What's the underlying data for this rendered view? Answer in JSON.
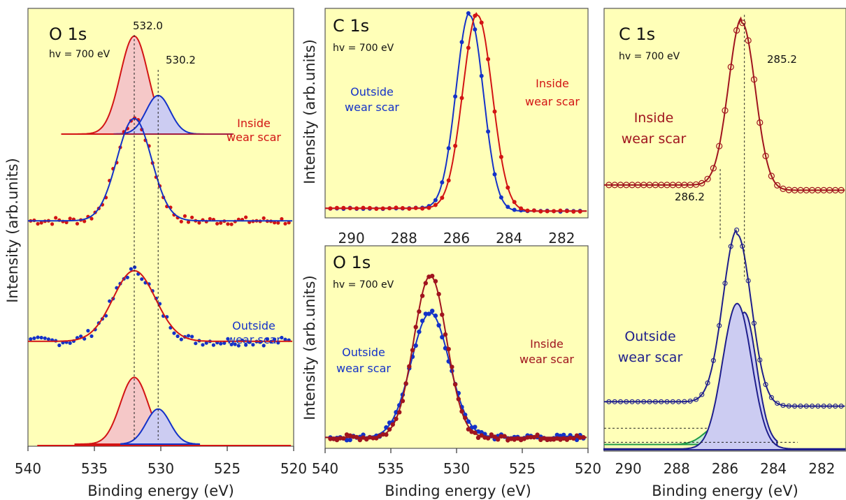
{
  "figure": {
    "shared_ylabel": "Intensity (arb.units)",
    "colors": {
      "background": "#ffffb8",
      "red": "#d21414",
      "darkred": "#a0141e",
      "blue": "#1432c8",
      "navy": "#1e1e8c",
      "green": "#1e9a46",
      "pink": "#f5c8c8",
      "lightblue": "#ccccf2",
      "mint": "#c8ecd2"
    }
  },
  "chart_data": [
    {
      "id": "o1s_left",
      "type": "line",
      "title": "O 1s",
      "subtitle": "hv = 700 eV",
      "xlabel": "Binding energy (eV)",
      "ylabel": "Intensity (arb.units)",
      "xlim": [
        540,
        520
      ],
      "xticks": [
        540,
        535,
        530,
        525,
        520
      ],
      "annotations": [
        "532.0",
        "530.2"
      ],
      "groups": [
        {
          "label": [
            "Inside",
            "wear scar"
          ],
          "label_color": "#d21414",
          "baseline": 0.515,
          "fit_center": 532.0,
          "fit_height": 0.236,
          "fit_width": 1.3,
          "components": [
            {
              "center": 532.0,
              "height": 0.226,
              "width": 1.05,
              "color": "pink"
            },
            {
              "center": 530.2,
              "height": 0.089,
              "width": 0.9,
              "color": "lightblue"
            }
          ],
          "component_base": 0.715
        },
        {
          "label": [
            "Outside",
            "wear scar"
          ],
          "label_color": "#1432c8",
          "baseline": 0.237,
          "fit_center": 532.0,
          "fit_height": 0.163,
          "fit_width": 1.6,
          "components": [
            {
              "center": 532.0,
              "height": 0.154,
              "width": 1.05,
              "color": "pink"
            },
            {
              "center": 530.2,
              "height": 0.081,
              "width": 0.9,
              "color": "lightblue"
            }
          ],
          "component_base": 0.0
        }
      ]
    },
    {
      "id": "c1s_middle",
      "type": "line",
      "title": "C 1s",
      "subtitle": "hv = 700 eV",
      "ylabel": "Intensity (arb.units)",
      "xlim": [
        291,
        281
      ],
      "xticks": [
        290,
        288,
        286,
        284,
        282
      ],
      "series": [
        {
          "label": [
            "Outside",
            "wear scar"
          ],
          "label_color": "#1432c8",
          "center": 285.5,
          "height": 1.0,
          "width": 0.52
        },
        {
          "label": [
            "Inside",
            "wear scar"
          ],
          "label_color": "#d21414",
          "center": 285.2,
          "height": 1.0,
          "width": 0.56
        }
      ]
    },
    {
      "id": "o1s_middle",
      "type": "scatter",
      "title": "O 1s",
      "subtitle": "hv = 700 eV",
      "xlabel": "Binding energy (eV)",
      "ylabel": "Intensity (arb.units)",
      "xlim": [
        540,
        520
      ],
      "xticks": [
        540,
        535,
        530,
        525,
        520
      ],
      "series": [
        {
          "label": [
            "Outside",
            "wear scar"
          ],
          "label_color": "#1432c8",
          "center": 532.0,
          "height": 0.78,
          "width": 1.45
        },
        {
          "label": [
            "Inside",
            "wear scar"
          ],
          "label_color": "#a0141e",
          "center": 532.0,
          "height": 1.0,
          "width": 1.25
        }
      ]
    },
    {
      "id": "c1s_right",
      "type": "line",
      "title": "C 1s",
      "subtitle": "hv = 700 eV",
      "xlabel": "Binding energy (eV)",
      "xlim": [
        291,
        281
      ],
      "xticks": [
        290,
        288,
        286,
        284,
        282
      ],
      "annotations": [
        "285.2",
        "286.2"
      ],
      "groups": [
        {
          "label": [
            "Inside",
            "wear scar"
          ],
          "label_color": "#a0141e",
          "baseline": 0.598,
          "fit_center": 285.3,
          "fit_height": 0.38,
          "fit_width": 0.55,
          "components": [
            {
              "center": 285.2,
              "height": 0.3,
              "width": 0.5,
              "color": "lightblue"
            },
            {
              "center": 286.2,
              "height": 0.046,
              "width": 0.6,
              "color": "mint"
            }
          ]
        },
        {
          "label": [
            "Outside",
            "wear scar"
          ],
          "label_color": "#1e1e8c",
          "baseline": 0.107,
          "fit_center": 285.5,
          "fit_height": 0.39,
          "fit_width": 0.58,
          "components": [
            {
              "center": 285.5,
              "height": 0.33,
              "width": 0.55,
              "color": "lightblue"
            }
          ]
        }
      ]
    }
  ]
}
